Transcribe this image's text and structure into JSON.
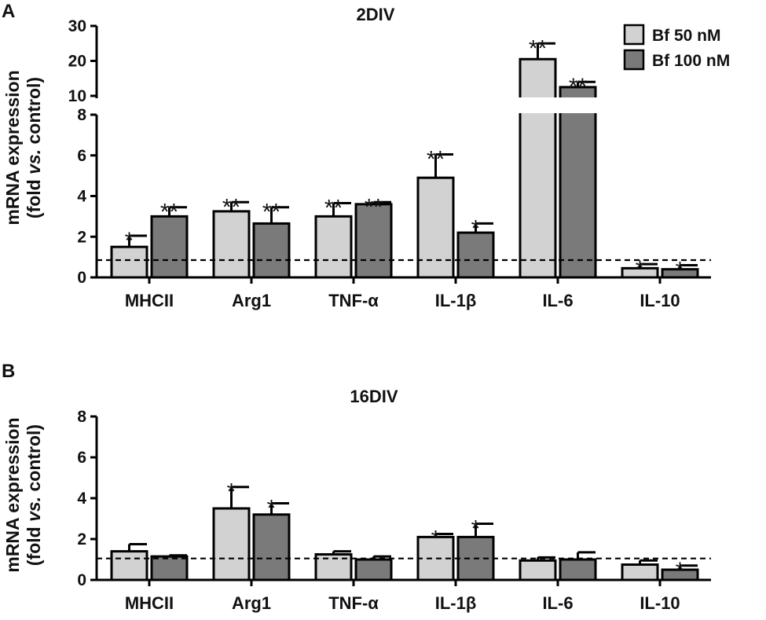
{
  "chart_data": [
    {
      "panel": "A",
      "type": "bar",
      "title": "2DIV",
      "ylabel": "mRNA expression",
      "ylabel2_parts": [
        "(fold ",
        "vs.",
        " control)"
      ],
      "categories": [
        "MHCII",
        "Arg1",
        "TNF-α",
        "IL-1β",
        "IL-6",
        "IL-10"
      ],
      "series": [
        {
          "name": "Bf 50 nM",
          "color": "#d2d2d2",
          "values": [
            1.5,
            3.25,
            3.0,
            4.9,
            20.5,
            0.45
          ],
          "errors": [
            0.55,
            0.45,
            0.65,
            1.15,
            4.5,
            0.2
          ],
          "significance": [
            "*",
            "**",
            "**",
            "**",
            "**",
            "*"
          ]
        },
        {
          "name": "Bf 100 nM",
          "color": "#7a7a7a",
          "values": [
            3.0,
            2.65,
            3.6,
            2.2,
            12.5,
            0.4
          ],
          "errors": [
            0.45,
            0.8,
            0.1,
            0.45,
            1.5,
            0.2
          ],
          "significance": [
            "**",
            "**",
            "**",
            "*",
            "**",
            "*"
          ]
        }
      ],
      "ylim_lower": [
        0,
        8
      ],
      "ylim_upper": [
        10,
        30
      ],
      "yticks_lower": [
        "0",
        "2",
        "4",
        "6",
        "8"
      ],
      "yticks_upper": [
        "10",
        "20",
        "30"
      ],
      "reference_line": 0.85
    },
    {
      "panel": "B",
      "type": "bar",
      "title": "16DIV",
      "ylabel": "mRNA expression",
      "ylabel2_parts": [
        "(fold ",
        "vs.",
        " control)"
      ],
      "categories": [
        "MHCII",
        "Arg1",
        "TNF-α",
        "IL-1β",
        "IL-6",
        "IL-10"
      ],
      "series": [
        {
          "name": "Bf 50 nM",
          "color": "#d2d2d2",
          "values": [
            1.4,
            3.5,
            1.25,
            2.1,
            0.95,
            0.75
          ],
          "errors": [
            0.35,
            1.05,
            0.15,
            0.15,
            0.15,
            0.2
          ],
          "significance": [
            "",
            "*",
            "",
            "*",
            "",
            ""
          ]
        },
        {
          "name": "Bf 100 nM",
          "color": "#7a7a7a",
          "values": [
            1.15,
            3.2,
            1.0,
            2.1,
            1.0,
            0.5
          ],
          "errors": [
            0.05,
            0.55,
            0.15,
            0.65,
            0.35,
            0.2
          ],
          "significance": [
            "",
            "*",
            "",
            "*",
            "",
            "*"
          ]
        }
      ],
      "ylim": [
        0,
        8
      ],
      "yticks": [
        "0",
        "2",
        "4",
        "6",
        "8"
      ],
      "reference_line": 1.05
    }
  ]
}
